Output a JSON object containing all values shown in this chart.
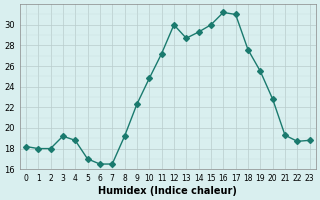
{
  "x": [
    0,
    1,
    2,
    3,
    4,
    5,
    6,
    7,
    8,
    9,
    10,
    11,
    12,
    13,
    14,
    15,
    16,
    17,
    18,
    19,
    20,
    21,
    22,
    23
  ],
  "y": [
    18.2,
    18.0,
    18.0,
    19.2,
    18.8,
    17.0,
    16.5,
    16.5,
    19.2,
    22.3,
    24.8,
    27.2,
    30.0,
    28.7,
    29.3,
    30.0,
    31.2,
    31.0,
    27.6,
    25.5,
    22.8,
    19.3,
    18.7,
    18.8
  ],
  "xlabel": "Humidex (Indice chaleur)",
  "ylabel": "",
  "xlim": [
    -0.5,
    23.5
  ],
  "ylim": [
    16,
    32
  ],
  "yticks": [
    16,
    18,
    20,
    22,
    24,
    26,
    28,
    30
  ],
  "xtick_labels": [
    "0",
    "1",
    "2",
    "3",
    "4",
    "5",
    "6",
    "7",
    "8",
    "9",
    "10",
    "11",
    "12",
    "13",
    "14",
    "15",
    "16",
    "17",
    "18",
    "19",
    "20",
    "21",
    "22",
    "23"
  ],
  "line_color": "#1a7a6e",
  "marker": "D",
  "marker_size": 3,
  "background_color": "#d9efef",
  "grid_color": "#c0d8d8",
  "grid_major_color": "#b0b0b0"
}
